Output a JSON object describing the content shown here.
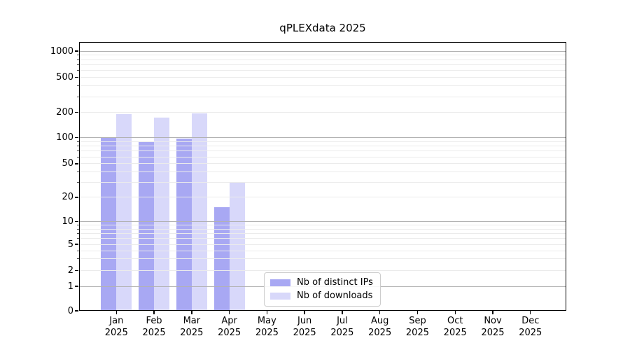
{
  "title": "qPLEXdata 2025",
  "chart_data": {
    "type": "bar",
    "title": "qPLEXdata 2025",
    "categories": [
      "Jan",
      "Feb",
      "Mar",
      "Apr",
      "May",
      "Jun",
      "Jul",
      "Aug",
      "Sep",
      "Oct",
      "Nov",
      "Dec"
    ],
    "year_label": "2025",
    "series": [
      {
        "name": "Nb of distinct IPs",
        "color": "#a8a8f3",
        "values": [
          100,
          88,
          97,
          15,
          null,
          null,
          null,
          null,
          null,
          null,
          null,
          null
        ]
      },
      {
        "name": "Nb of downloads",
        "color": "#d8d8fa",
        "values": [
          190,
          175,
          195,
          30,
          null,
          null,
          null,
          null,
          null,
          null,
          null,
          null
        ]
      }
    ],
    "y_axis": {
      "scale": "symlog",
      "ticks": [
        0,
        1,
        2,
        5,
        10,
        20,
        50,
        100,
        200,
        500,
        1000
      ],
      "range": [
        0,
        1200
      ]
    },
    "x_axis": {
      "tick_label_lines": [
        "month",
        "year"
      ]
    },
    "grid": {
      "major_lines_at": [
        1,
        10,
        100,
        1000
      ],
      "minor_multipliers_per_decade": [
        2,
        3,
        4,
        5,
        6,
        7,
        8,
        9
      ],
      "grid_on": true,
      "grid_above_bars": true
    },
    "legend": {
      "position": "inside-lower-center-left",
      "entries": [
        "Nb of distinct IPs",
        "Nb of downloads"
      ]
    },
    "colors": {
      "major_grid": "#b2b2b2",
      "minor_grid": "#ebebeb",
      "spine": "#000000",
      "background": "#ffffff"
    }
  }
}
